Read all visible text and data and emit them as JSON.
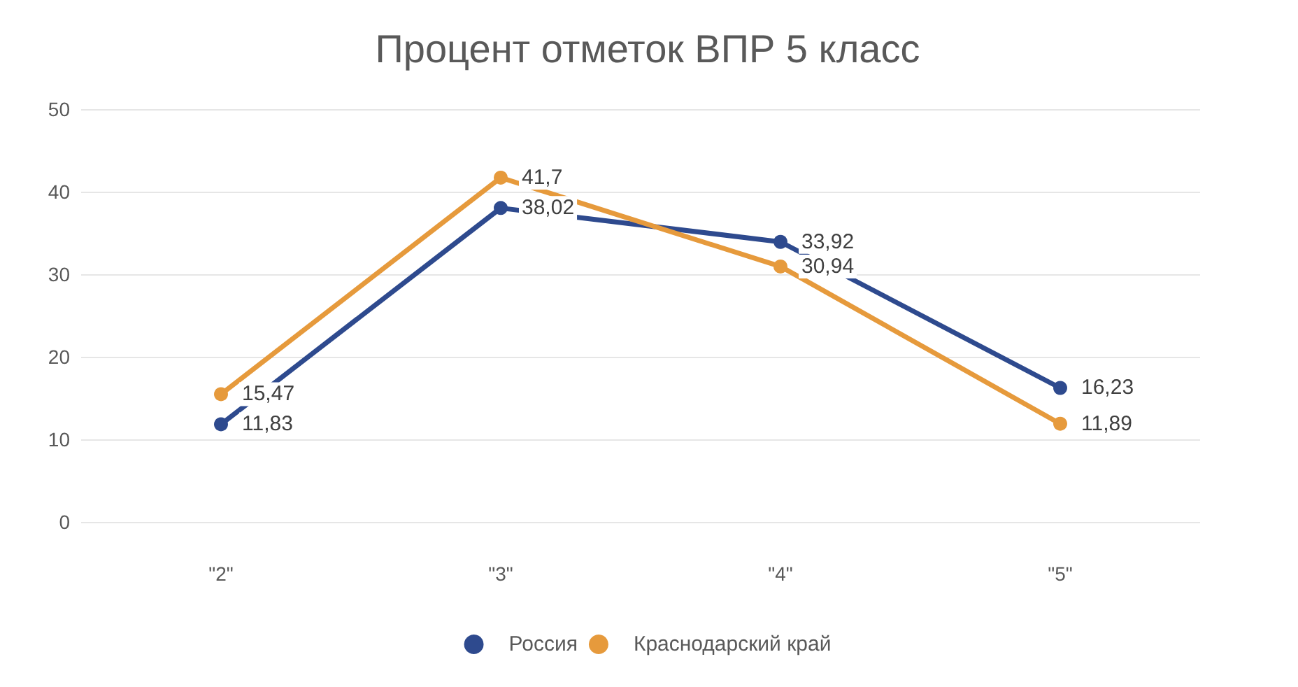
{
  "chart_data": {
    "type": "line",
    "title": "Процент отметок ВПР 5 класс",
    "categories": [
      "\"2\"",
      "\"3\"",
      "\"4\"",
      "\"5\""
    ],
    "series": [
      {
        "name": "Россия",
        "color": "#2e4a8e",
        "values": [
          11.83,
          38.02,
          33.92,
          16.23
        ],
        "value_labels": [
          "11,83",
          "38,02",
          "33,92",
          "16,23"
        ]
      },
      {
        "name": "Краснодарский край",
        "color": "#e69a3c",
        "values": [
          15.47,
          41.7,
          30.94,
          11.89
        ],
        "value_labels": [
          "15,47",
          "41,7",
          "30,94",
          "11,89"
        ]
      }
    ],
    "ylim": [
      0,
      50
    ],
    "yticks": [
      0,
      10,
      20,
      30,
      40,
      50
    ],
    "grid": "y",
    "legend": "bottom",
    "marker": "circle"
  }
}
